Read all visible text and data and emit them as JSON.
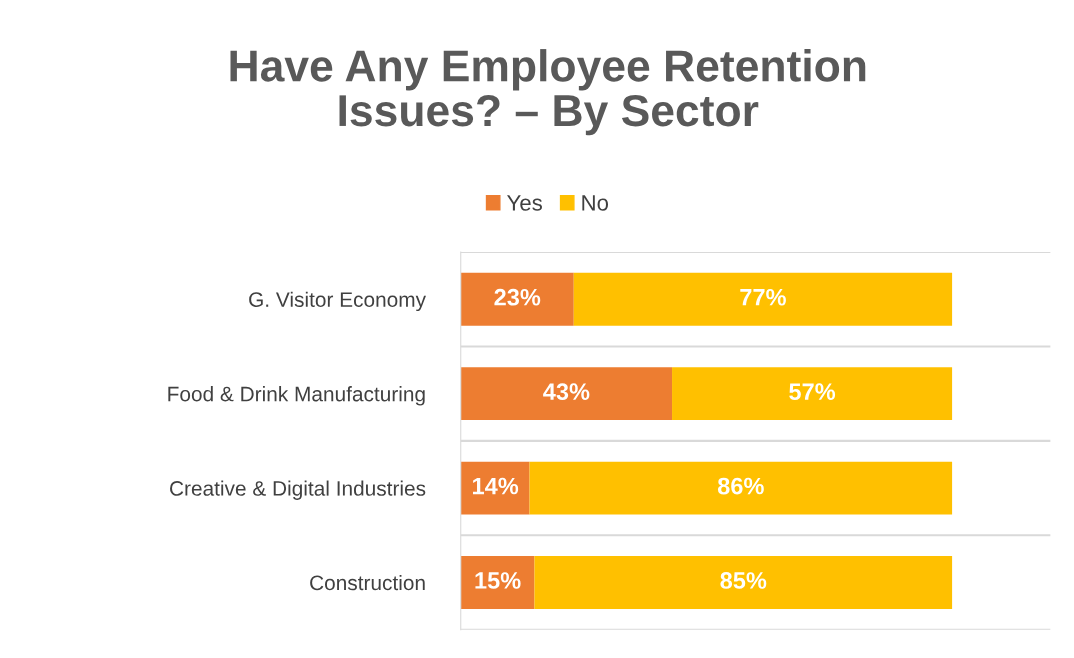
{
  "chart_data": {
    "type": "bar",
    "orientation": "horizontal",
    "stacked": true,
    "title": "Have Any Employee Retention\nIssues? – By Sector",
    "categories": [
      "G. Visitor Economy",
      "Food & Drink Manufacturing",
      "Creative & Digital Industries",
      "Construction"
    ],
    "series": [
      {
        "name": "Yes",
        "color": "#ed7d31",
        "values": [
          23,
          43,
          14,
          15
        ],
        "value_labels": [
          "23%",
          "43%",
          "14%",
          "15%"
        ]
      },
      {
        "name": "No",
        "color": "#ffc000",
        "values": [
          77,
          57,
          86,
          85
        ],
        "value_labels": [
          "77%",
          "57%",
          "86%",
          "85%"
        ]
      }
    ],
    "tick_labels": "y",
    "grid": "y",
    "legend": "top"
  }
}
